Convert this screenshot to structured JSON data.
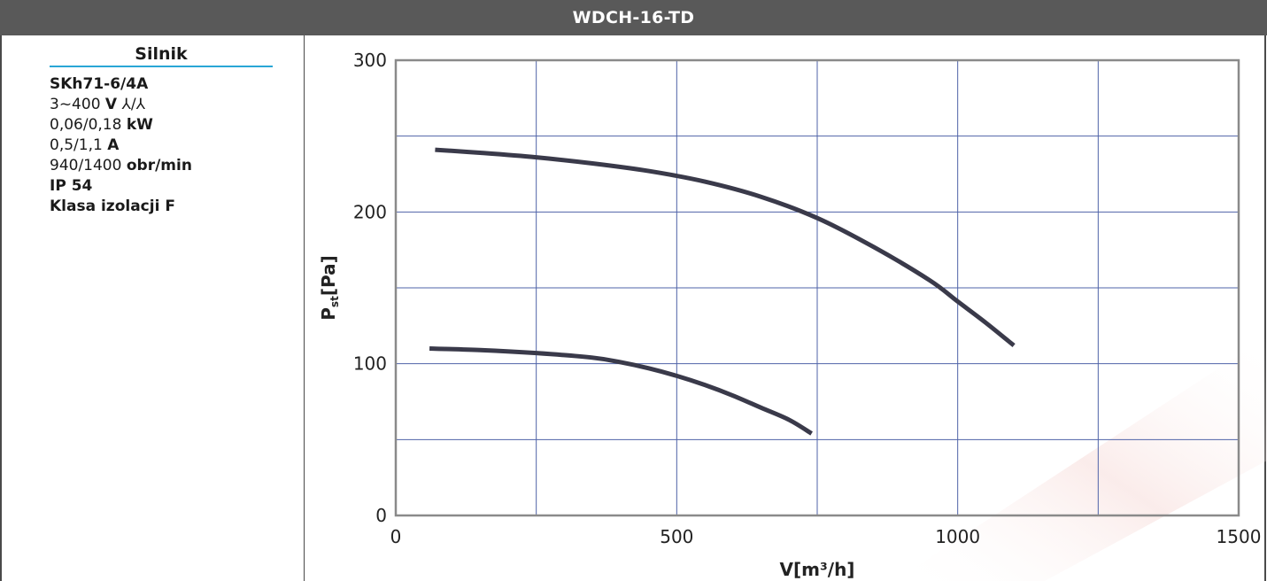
{
  "header": {
    "title": "WDCH-16-TD"
  },
  "motor": {
    "title": "Silnik",
    "model": "SKh71-6/4A",
    "voltage_value": "3~400",
    "voltage_unit": "V",
    "voltage_connection": "⅄/⅄",
    "power_value": "0,06/0,18",
    "power_unit": "kW",
    "current_value": "0,5/1,1",
    "current_unit": "A",
    "speed_value": "940/1400",
    "speed_unit": "obr/min",
    "protection": "IP 54",
    "insulation": "Klasa izolacji F"
  },
  "colors": {
    "header_bg": "#595959",
    "accent": "#2aa6d6",
    "grid": "#4f63a8",
    "curve": "#3a3a4a"
  },
  "chart_data": {
    "type": "line",
    "title": "",
    "xlabel": "V[m³/h]",
    "ylabel": "P",
    "ylabel_subscript": "st",
    "ylabel_unit": "[Pa]",
    "xlim": [
      0,
      1500
    ],
    "ylim": [
      0,
      300
    ],
    "x_ticks": [
      0,
      500,
      1000,
      1500
    ],
    "y_ticks": [
      0,
      100,
      200,
      300
    ],
    "x_grid_step": 250,
    "y_grid_step": 50,
    "grid": true,
    "series": [
      {
        "x": [
          70,
          150,
          250,
          350,
          450,
          550,
          650,
          750,
          850,
          950,
          1000,
          1050,
          1100
        ],
        "y": [
          241,
          239,
          236,
          232,
          227,
          220,
          210,
          196,
          177,
          155,
          141,
          127,
          112
        ]
      },
      {
        "x": [
          60,
          150,
          250,
          350,
          400,
          450,
          500,
          550,
          600,
          650,
          700,
          740
        ],
        "y": [
          110,
          109,
          107,
          104,
          101,
          97,
          92,
          86,
          79,
          71,
          63,
          54
        ]
      }
    ]
  }
}
